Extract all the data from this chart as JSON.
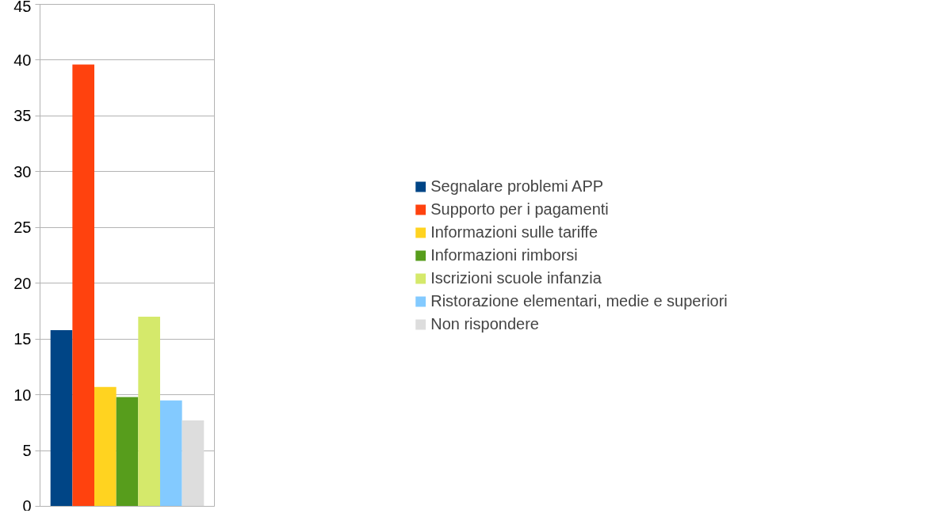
{
  "chart_data": {
    "type": "bar",
    "categories": [
      null
    ],
    "series": [
      {
        "name": "Segnalare problemi APP",
        "color": "#004586",
        "values": [
          15.8
        ]
      },
      {
        "name": "Supporto per i pagamenti",
        "color": "#ff420e",
        "values": [
          39.6
        ]
      },
      {
        "name": "Informazioni sulle tariffe",
        "color": "#ffd320",
        "values": [
          10.7
        ]
      },
      {
        "name": "Informazioni rimborsi",
        "color": "#579d1c",
        "values": [
          9.8
        ]
      },
      {
        "name": "Iscrizioni scuole infanzia",
        "color": "#d5e96b",
        "values": [
          17.0
        ]
      },
      {
        "name": "Ristorazione elementari, medie e superiori",
        "color": "#83caff",
        "values": [
          9.5
        ]
      },
      {
        "name": "Non rispondere",
        "color": "#dddddd",
        "values": [
          7.7
        ]
      }
    ],
    "ylim": [
      0,
      45
    ],
    "yticks": [
      0,
      5,
      10,
      15,
      20,
      25,
      30,
      35,
      40,
      45
    ],
    "grid": "y",
    "legend": "right",
    "tick_labels": "y"
  }
}
